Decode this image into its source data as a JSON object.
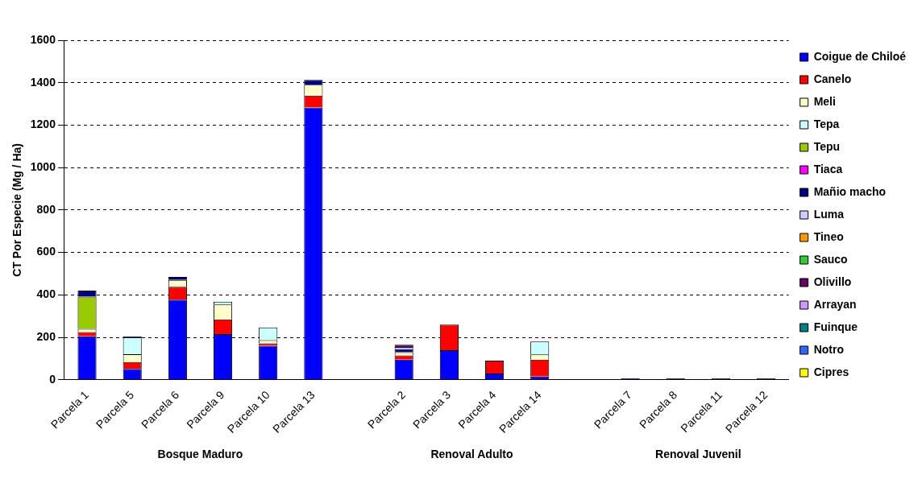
{
  "chart_data": {
    "type": "bar",
    "stacked": true,
    "ylabel": "CT Por Especie (Mg / Ha)",
    "categories": [
      "Parcela 1",
      "Parcela 5",
      "Parcela 6",
      "Parcela 9",
      "Parcela 10",
      "Parcela 13",
      null,
      "Parcela 2",
      "Parcela 3",
      "Parcela 4",
      "Parcela 14",
      null,
      "Parcela 7",
      "Parcela 8",
      "Parcela 11",
      "Parcela 12"
    ],
    "annotations": [
      "Bosque Maduro",
      "Renoval Adulto",
      "Renoval Juvenil"
    ],
    "ylim": [
      0,
      1600
    ],
    "yticks": [
      0,
      200,
      400,
      600,
      800,
      1000,
      1200,
      1400,
      1600
    ],
    "grid": "y",
    "legend": "right",
    "series": [
      {
        "name": "Coigue de Chiloé",
        "color": "#0000ff",
        "values": [
          205,
          51,
          378,
          215,
          160,
          1283,
          null,
          95,
          140,
          30,
          15,
          null,
          null,
          null,
          null,
          null
        ]
      },
      {
        "name": "Canelo",
        "color": "#ff0000",
        "values": [
          20,
          33,
          60,
          70,
          12,
          56,
          null,
          20,
          120,
          60,
          80,
          null,
          null,
          null,
          null,
          null
        ]
      },
      {
        "name": "Meli",
        "color": "#ffffcc",
        "values": [
          15,
          37,
          33,
          70,
          15,
          51,
          null,
          15,
          null,
          null,
          25,
          null,
          null,
          null,
          null,
          null
        ]
      },
      {
        "name": "Tepa",
        "color": "#ccffff",
        "values": [
          null,
          79,
          null,
          13,
          60,
          null,
          null,
          null,
          null,
          null,
          60,
          null,
          null,
          null,
          null,
          null
        ]
      },
      {
        "name": "Tepu",
        "color": "#99cc00",
        "values": [
          152,
          null,
          null,
          null,
          null,
          null,
          null,
          null,
          null,
          null,
          null,
          null,
          null,
          null,
          null,
          null
        ]
      },
      {
        "name": "Tiaca",
        "color": "#ff00ff",
        "values": [
          null,
          null,
          null,
          null,
          null,
          null,
          null,
          null,
          null,
          null,
          null,
          null,
          null,
          null,
          null,
          null
        ]
      },
      {
        "name": "Mañio macho",
        "color": "#000080",
        "values": [
          28,
          5,
          14,
          null,
          null,
          23,
          null,
          15,
          null,
          null,
          null,
          null,
          8,
          8,
          8,
          8
        ]
      },
      {
        "name": "Luma",
        "color": "#ccccff",
        "values": [
          null,
          null,
          null,
          null,
          null,
          null,
          null,
          10,
          null,
          null,
          null,
          null,
          null,
          null,
          null,
          null
        ]
      },
      {
        "name": "Tineo",
        "color": "#ff9900",
        "values": [
          null,
          null,
          null,
          null,
          null,
          null,
          null,
          null,
          null,
          null,
          null,
          null,
          null,
          null,
          null,
          null
        ]
      },
      {
        "name": "Sauco",
        "color": "#33cc33",
        "values": [
          null,
          null,
          null,
          null,
          null,
          null,
          null,
          null,
          null,
          null,
          null,
          null,
          null,
          null,
          null,
          null
        ]
      },
      {
        "name": "Olivillo",
        "color": "#660066",
        "values": [
          null,
          null,
          null,
          null,
          null,
          null,
          null,
          10,
          null,
          null,
          null,
          null,
          null,
          null,
          null,
          null
        ]
      },
      {
        "name": "Arrayan",
        "color": "#cc99ff",
        "values": [
          null,
          null,
          null,
          null,
          null,
          null,
          null,
          null,
          null,
          null,
          null,
          null,
          null,
          null,
          null,
          null
        ]
      },
      {
        "name": "Fuinque",
        "color": "#008080",
        "values": [
          null,
          null,
          null,
          null,
          null,
          null,
          null,
          null,
          null,
          null,
          null,
          null,
          null,
          null,
          null,
          null
        ]
      },
      {
        "name": "Notro",
        "color": "#3366ff",
        "values": [
          null,
          null,
          null,
          null,
          null,
          null,
          null,
          null,
          null,
          null,
          null,
          null,
          null,
          null,
          null,
          null
        ]
      },
      {
        "name": "Cipres",
        "color": "#ffff00",
        "values": [
          null,
          null,
          null,
          null,
          null,
          null,
          null,
          null,
          null,
          null,
          null,
          null,
          null,
          null,
          null,
          null
        ]
      }
    ]
  }
}
